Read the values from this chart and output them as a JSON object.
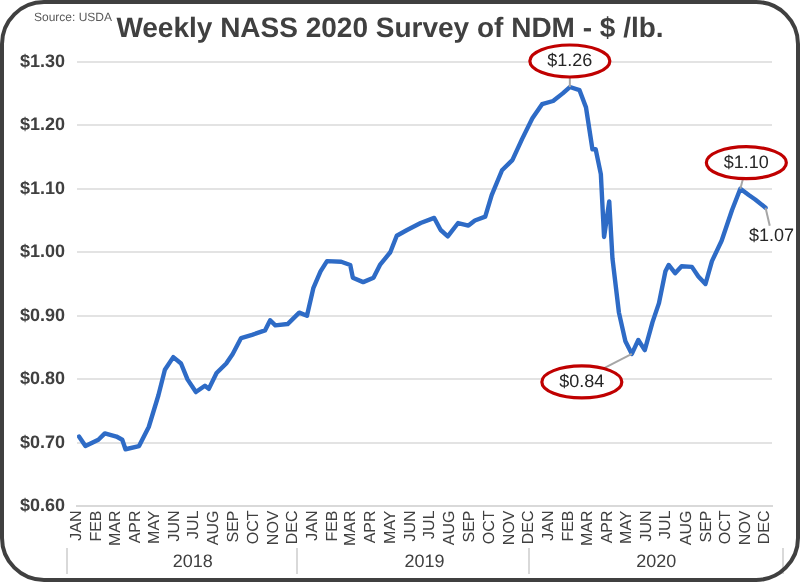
{
  "chart_data": {
    "type": "line",
    "title": "Weekly NASS 2020 Survey of NDM - $ /lb.",
    "x": [
      "2018-01-04",
      "2018-01-14",
      "2018-02-03",
      "2018-02-13",
      "2018-03-03",
      "2018-03-12",
      "2018-03-17",
      "2018-04-07",
      "2018-04-22",
      "2018-05-07",
      "2018-05-17",
      "2018-05-30",
      "2018-06-11",
      "2018-06-21",
      "2018-07-04",
      "2018-07-18",
      "2018-07-24",
      "2018-08-05",
      "2018-08-20",
      "2018-08-30",
      "2018-09-12",
      "2018-09-29",
      "2018-10-19",
      "2018-10-27",
      "2018-11-04",
      "2018-11-23",
      "2018-12-11",
      "2018-12-23",
      "2019-01-02",
      "2019-01-13",
      "2019-01-23",
      "2019-02-14",
      "2019-02-28",
      "2019-03-04",
      "2019-03-20",
      "2019-04-05",
      "2019-04-15",
      "2019-05-01",
      "2019-05-11",
      "2019-05-27",
      "2019-06-17",
      "2019-07-08",
      "2019-07-18",
      "2019-07-29",
      "2019-08-14",
      "2019-08-30",
      "2019-09-09",
      "2019-09-25",
      "2019-10-05",
      "2019-10-21",
      "2019-11-06",
      "2019-11-21",
      "2019-12-07",
      "2019-12-22",
      "2020-01-08",
      "2020-01-23",
      "2020-02-03",
      "2020-02-18",
      "2020-02-28",
      "2020-03-09",
      "2020-03-14",
      "2020-03-22",
      "2020-03-27",
      "2020-04-04",
      "2020-04-09",
      "2020-04-19",
      "2020-04-29",
      "2020-05-09",
      "2020-05-19",
      "2020-05-29",
      "2020-06-10",
      "2020-06-20",
      "2020-06-30",
      "2020-07-05",
      "2020-07-15",
      "2020-07-25",
      "2020-08-10",
      "2020-08-20",
      "2020-08-31",
      "2020-09-10",
      "2020-09-25",
      "2020-10-11",
      "2020-10-24",
      "2020-11-06",
      "2020-11-16",
      "2020-12-02"
    ],
    "values": [
      0.71,
      0.695,
      0.705,
      0.715,
      0.71,
      0.705,
      0.69,
      0.695,
      0.725,
      0.775,
      0.815,
      0.835,
      0.825,
      0.8,
      0.78,
      0.79,
      0.785,
      0.81,
      0.825,
      0.84,
      0.865,
      0.87,
      0.877,
      0.893,
      0.885,
      0.887,
      0.905,
      0.9,
      0.944,
      0.97,
      0.986,
      0.985,
      0.98,
      0.96,
      0.953,
      0.96,
      0.98,
      1.0,
      1.026,
      1.035,
      1.046,
      1.054,
      1.035,
      1.025,
      1.046,
      1.042,
      1.05,
      1.056,
      1.09,
      1.129,
      1.145,
      1.178,
      1.211,
      1.233,
      1.238,
      1.25,
      1.26,
      1.255,
      1.228,
      1.162,
      1.162,
      1.123,
      1.024,
      1.08,
      0.99,
      0.905,
      0.86,
      0.84,
      0.862,
      0.846,
      0.89,
      0.92,
      0.97,
      0.98,
      0.967,
      0.978,
      0.977,
      0.962,
      0.95,
      0.986,
      1.018,
      1.066,
      1.1,
      1.09,
      1.083,
      1.07
    ],
    "color": "#2e6bc6",
    "xlim": [
      "2018-01-01",
      "2020-12-12"
    ],
    "xticks": [
      {
        "value": "2018-01",
        "label": "JAN"
      },
      {
        "value": "2018-02",
        "label": "FEB"
      },
      {
        "value": "2018-03",
        "label": "MAR"
      },
      {
        "value": "2018-04",
        "label": "APR"
      },
      {
        "value": "2018-05",
        "label": "MAY"
      },
      {
        "value": "2018-06",
        "label": "JUN"
      },
      {
        "value": "2018-07",
        "label": "JUL"
      },
      {
        "value": "2018-08",
        "label": "AUG"
      },
      {
        "value": "2018-09",
        "label": "SEP"
      },
      {
        "value": "2018-10",
        "label": "OCT"
      },
      {
        "value": "2018-11",
        "label": "NOV"
      },
      {
        "value": "2018-12",
        "label": "DEC"
      },
      {
        "value": "2019-01",
        "label": "JAN"
      },
      {
        "value": "2019-02",
        "label": "FEB"
      },
      {
        "value": "2019-03",
        "label": "MAR"
      },
      {
        "value": "2019-04",
        "label": "APR"
      },
      {
        "value": "2019-05",
        "label": "MAY"
      },
      {
        "value": "2019-06",
        "label": "JUN"
      },
      {
        "value": "2019-07",
        "label": "JUL"
      },
      {
        "value": "2019-08",
        "label": "AUG"
      },
      {
        "value": "2019-09",
        "label": "SEP"
      },
      {
        "value": "2019-10",
        "label": "OCT"
      },
      {
        "value": "2019-11",
        "label": "NOV"
      },
      {
        "value": "2019-12",
        "label": "DEC"
      },
      {
        "value": "2020-01",
        "label": "JAN"
      },
      {
        "value": "2020-02",
        "label": "FEB"
      },
      {
        "value": "2020-03",
        "label": "MAR"
      },
      {
        "value": "2020-04",
        "label": "APR"
      },
      {
        "value": "2020-05",
        "label": "MAY"
      },
      {
        "value": "2020-06",
        "label": "JUN"
      },
      {
        "value": "2020-07",
        "label": "JUL"
      },
      {
        "value": "2020-08",
        "label": "AUG"
      },
      {
        "value": "2020-09",
        "label": "SEP"
      },
      {
        "value": "2020-10",
        "label": "OCT"
      },
      {
        "value": "2020-11",
        "label": "NOV"
      },
      {
        "value": "2020-12",
        "label": "DEC"
      }
    ],
    "ylim": [
      0.6,
      1.3
    ],
    "yticks": [
      {
        "value": 0.6,
        "label": "$0.60"
      },
      {
        "value": 0.7,
        "label": "$0.70"
      },
      {
        "value": 0.8,
        "label": "$0.80"
      },
      {
        "value": 0.9,
        "label": "$0.90"
      },
      {
        "value": 1.0,
        "label": "$1.00"
      },
      {
        "value": 1.1,
        "label": "$1.10"
      },
      {
        "value": 1.2,
        "label": "$1.20"
      },
      {
        "value": 1.3,
        "label": "$1.30"
      }
    ],
    "grid": "y",
    "legend": false,
    "annotations": [
      "Source: USDA",
      "2018",
      "2019",
      "2020",
      {
        "text": "$1.26",
        "x": "2020-02-03",
        "y": 1.26
      },
      {
        "text": "$0.84",
        "x": "2020-05-09",
        "y": 0.84
      },
      {
        "text": "$1.10",
        "x": "2020-10-24",
        "y": 1.1
      },
      {
        "text": "$1.07",
        "x": "2020-12-02",
        "y": 1.07
      }
    ]
  }
}
